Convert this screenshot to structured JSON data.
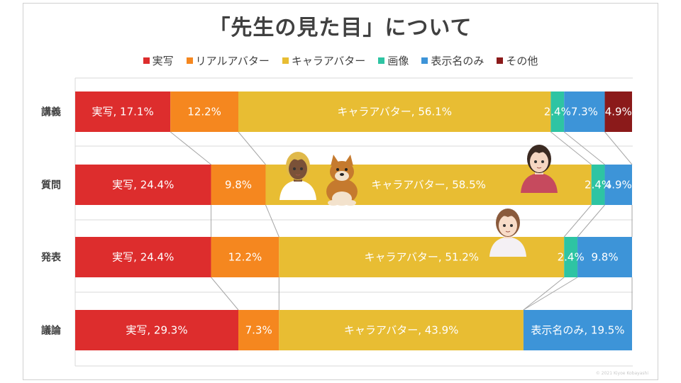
{
  "chart_data": {
    "type": "bar",
    "stacked": true,
    "normalized": true,
    "orientation": "horizontal",
    "title": "「先生の見た目」について",
    "legend_position": "top",
    "categories": [
      "講義",
      "質問",
      "発表",
      "議論"
    ],
    "series": [
      {
        "name": "実写",
        "color": "#dd2d2d",
        "values": [
          17.1,
          24.4,
          24.4,
          29.3
        ]
      },
      {
        "name": "リアルアバター",
        "color": "#f5871f",
        "values": [
          12.2,
          9.8,
          12.2,
          7.3
        ]
      },
      {
        "name": "キャラアバター",
        "color": "#e8bd33",
        "values": [
          56.1,
          58.5,
          51.2,
          43.9
        ]
      },
      {
        "name": "画像",
        "color": "#2ec4a3",
        "values": [
          2.4,
          2.4,
          2.4,
          0
        ]
      },
      {
        "name": "表示名のみ",
        "color": "#3d94d8",
        "values": [
          7.3,
          4.9,
          9.8,
          19.5
        ]
      },
      {
        "name": "その他",
        "color": "#8b1a1a",
        "values": [
          4.9,
          0,
          0,
          0
        ]
      }
    ],
    "data_labels": [
      [
        "実写, 17.1%",
        "12.2%",
        "キャラアバター, 56.1%",
        "2.4%",
        "7.3%",
        "4.9%"
      ],
      [
        "実写, 24.4%",
        "9.8%",
        "キャラアバター, 58.5%",
        "2.4%",
        "4.9%",
        ""
      ],
      [
        "実写, 24.4%",
        "12.2%",
        "キャラアバター, 51.2%",
        "2.4%",
        "9.8%",
        ""
      ],
      [
        "実写, 29.3%",
        "7.3%",
        "キャラアバター, 43.9%",
        "",
        "表示名のみ, 19.5%",
        ""
      ]
    ],
    "xlim": [
      0,
      100
    ],
    "series_lines": true
  },
  "footer": "© 2021 Kiyoe Kobayashi"
}
